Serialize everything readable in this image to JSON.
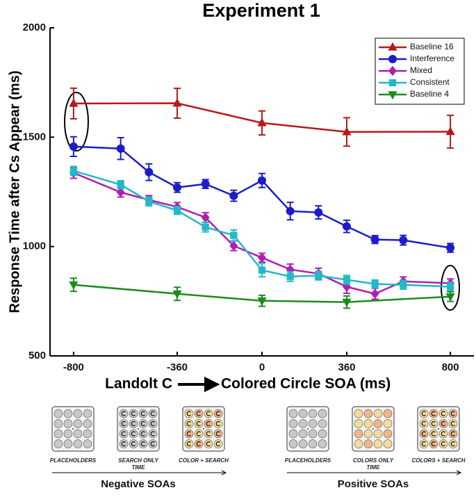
{
  "chart_data": {
    "type": "line",
    "title": "Experiment 1",
    "xlabel": [
      "Landolt C",
      "Colored Circle SOA (ms)"
    ],
    "ylabel": "Response Time after Cs Appear (ms)",
    "xlim": [
      -900,
      900
    ],
    "xticks": [
      -800,
      -360,
      0,
      360,
      800
    ],
    "ylim": [
      500,
      2000
    ],
    "yticks": [
      500,
      1000,
      1500,
      2000
    ],
    "legend": "upper right",
    "series": [
      {
        "name": "Baseline 16",
        "color": "#b31b1b",
        "marker": "triangle-up",
        "x": [
          -800,
          -360,
          0,
          360,
          800
        ],
        "values": [
          1654,
          1655,
          1565,
          1524,
          1525
        ],
        "errors": [
          70,
          68,
          55,
          65,
          75
        ]
      },
      {
        "name": "Interference",
        "color": "#1c1cc8",
        "marker": "circle",
        "x": [
          -800,
          -600,
          -480,
          -360,
          -240,
          -120,
          0,
          120,
          240,
          360,
          480,
          600,
          800
        ],
        "values": [
          1457,
          1448,
          1340,
          1270,
          1286,
          1232,
          1302,
          1162,
          1156,
          1092,
          1032,
          1029,
          994
        ],
        "errors": [
          45,
          50,
          38,
          22,
          20,
          25,
          32,
          40,
          30,
          28,
          18,
          22,
          20
        ]
      },
      {
        "name": "Mixed",
        "color": "#b01eb0",
        "marker": "diamond",
        "x": [
          -800,
          -600,
          -480,
          -360,
          -240,
          -120,
          0,
          120,
          240,
          360,
          480,
          600,
          800
        ],
        "values": [
          1337,
          1248,
          1213,
          1181,
          1133,
          1003,
          949,
          895,
          876,
          816,
          784,
          841,
          832
        ],
        "errors": [
          25,
          22,
          20,
          20,
          22,
          22,
          20,
          25,
          25,
          30,
          25,
          20,
          20
        ]
      },
      {
        "name": "Consistent",
        "color": "#22b8c8",
        "marker": "square",
        "x": [
          -800,
          -600,
          -480,
          -360,
          -240,
          -120,
          0,
          120,
          240,
          360,
          480,
          600,
          800
        ],
        "values": [
          1346,
          1283,
          1206,
          1165,
          1089,
          1051,
          892,
          863,
          867,
          848,
          829,
          825,
          816
        ],
        "errors": [
          20,
          18,
          20,
          18,
          22,
          25,
          30,
          22,
          20,
          20,
          18,
          20,
          20
        ]
      },
      {
        "name": "Baseline 4",
        "color": "#1e8a1e",
        "marker": "triangle-down",
        "x": [
          -800,
          -360,
          0,
          360,
          800
        ],
        "values": [
          825,
          784,
          752,
          746,
          771
        ],
        "errors": [
          30,
          30,
          25,
          28,
          22
        ]
      }
    ]
  },
  "panels": [
    {
      "captions": [
        "PLACEHOLDERS",
        "SEARCH ONLY",
        "COLOR + SEARCH"
      ],
      "time": "TIME",
      "label": "Negative SOAs"
    },
    {
      "captions": [
        "PLACEHOLDERS",
        "COLORS ONLY",
        "COLORS + SEARCH"
      ],
      "time": "TIME",
      "label": "Positive SOAs"
    }
  ]
}
